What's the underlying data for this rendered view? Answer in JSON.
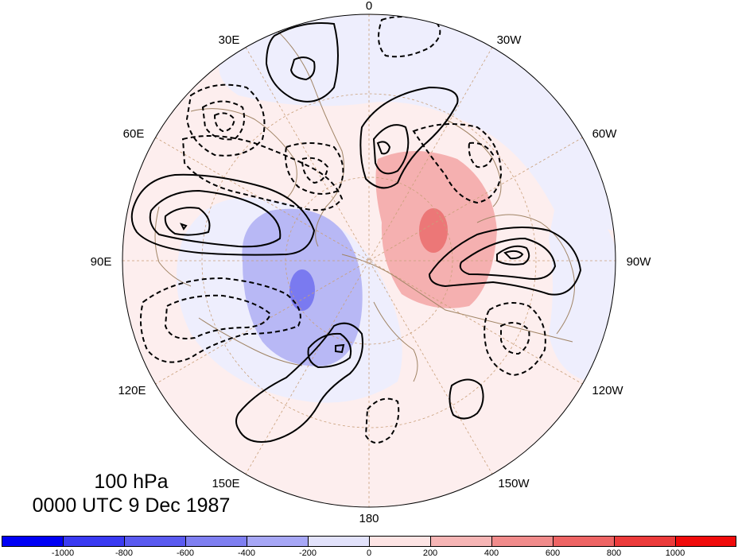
{
  "map": {
    "projection": "north-polar-stereographic",
    "longitude_labels": [
      "0",
      "30W",
      "60W",
      "90W",
      "120W",
      "150W",
      "180",
      "150E",
      "120E",
      "90E",
      "60E",
      "30E"
    ],
    "shading_colors": {
      "neg_weak": "#eeeefd",
      "neg_mid": "#b8b8f5",
      "neg_strong": "#7a7af0",
      "pos_weak": "#fdeeee",
      "pos_mid": "#f5b0b0",
      "pos_strong": "#ec7777",
      "coastline": "#a08465"
    },
    "contours": {
      "positive_style": "solid",
      "negative_style": "dashed",
      "color": "#000000"
    }
  },
  "caption": {
    "level": "100 hPa",
    "time": "0000 UTC 9 Dec 1987"
  },
  "colorbar": {
    "tick_labels": [
      "-1000",
      "-800",
      "-600",
      "-400",
      "-200",
      "0",
      "200",
      "400",
      "600",
      "800",
      "1000"
    ],
    "colors": [
      "#0000f5",
      "#3a3af2",
      "#5a5af0",
      "#7f7ff1",
      "#a7a7f6",
      "#e2e2fb",
      "#fde4e4",
      "#f6b5b5",
      "#f18b8b",
      "#ee6464",
      "#ec3b3b",
      "#f00b0b"
    ]
  }
}
